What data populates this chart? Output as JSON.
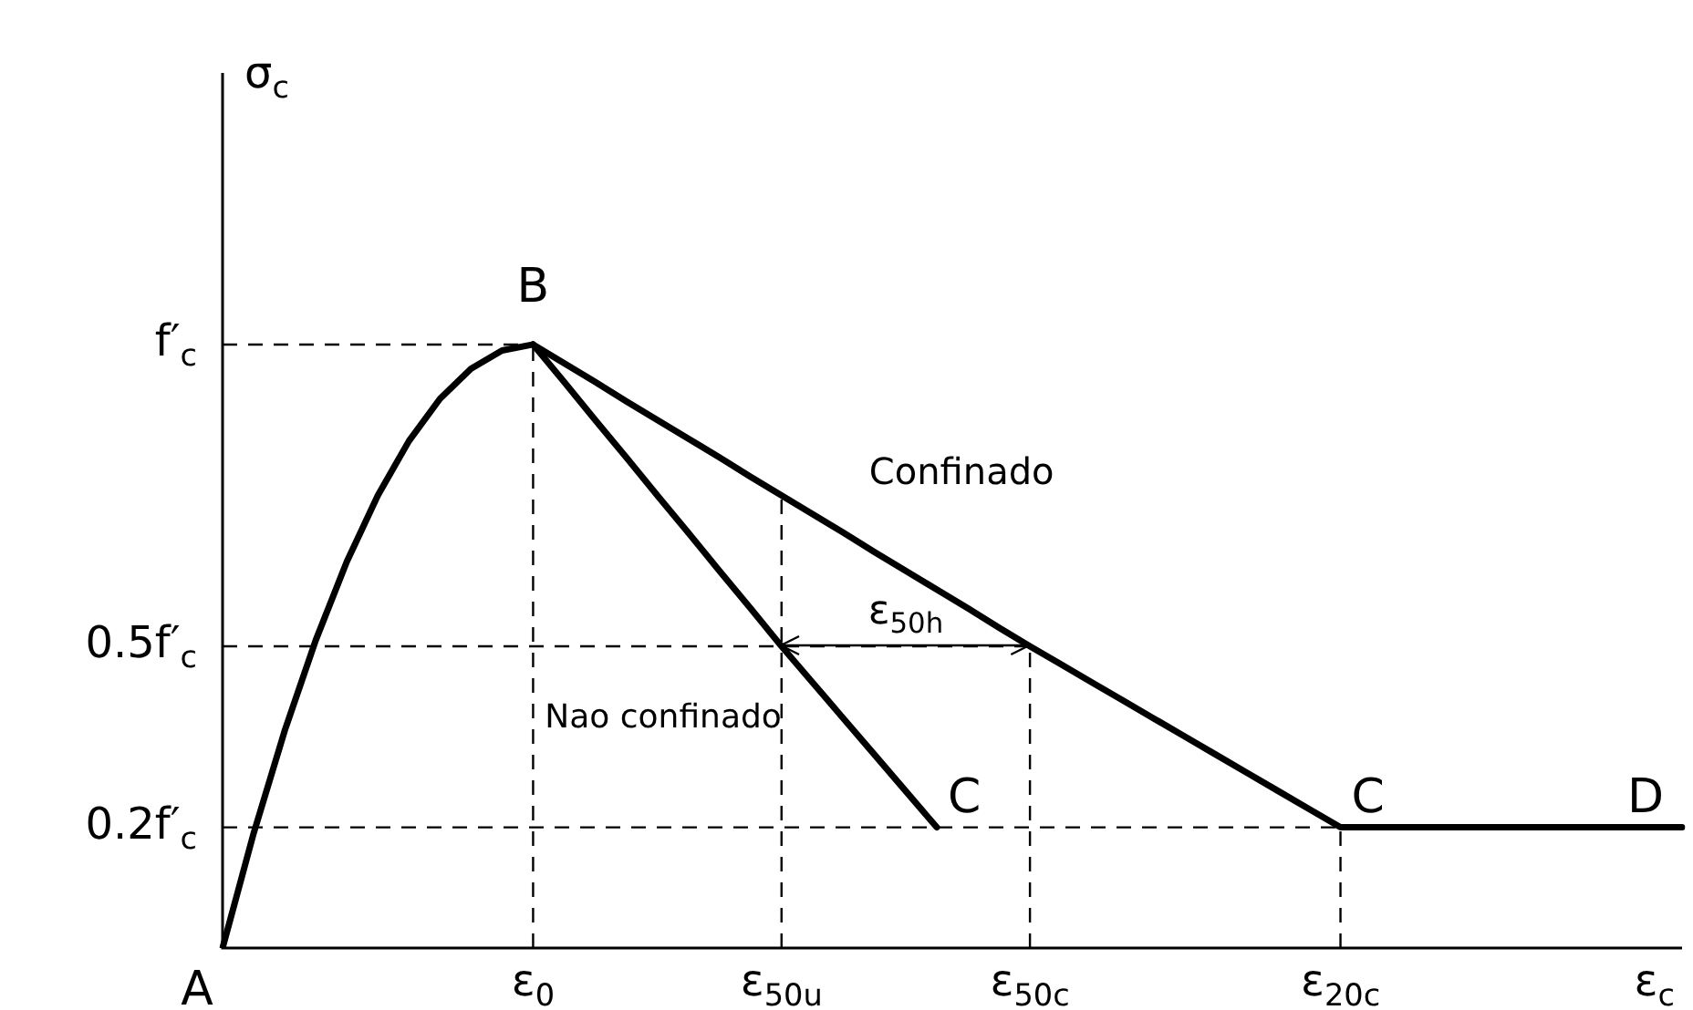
{
  "chart_data": {
    "type": "line",
    "xlabel": "ε$_{c}$",
    "ylabel": "σ$_{c}$",
    "categories": [
      null,
      null,
      null,
      null,
      null,
      null,
      null,
      null,
      null,
      null,
      "ε$_{0}$",
      null,
      null,
      null,
      null,
      null,
      null,
      null,
      "ε$_{50u}$",
      null,
      null,
      null,
      null,
      null,
      null,
      null,
      "ε$_{50c}$",
      null,
      null,
      null,
      null,
      null,
      null,
      null,
      null,
      null,
      "ε$_{20c}$",
      null,
      null,
      null,
      null,
      null,
      null,
      null,
      null,
      null,
      null,
      null
    ],
    "ylim": [
      0,
      1.45
    ],
    "yticks": [
      {
        "value": 1,
        "label": "f′$_{c}$"
      },
      {
        "value": 0.5,
        "label": "0.5f′$_{c}$"
      },
      {
        "value": 0.2,
        "label": "0.2f′$_{c}$"
      }
    ],
    "series": [
      {
        "color": "#000000",
        "values": [
          0,
          0.19,
          0.36,
          0.51,
          0.64,
          0.75,
          0.84,
          0.91,
          0.96,
          0.99,
          1,
          null,
          null,
          null,
          null,
          null,
          null,
          null,
          null,
          null,
          null,
          null,
          null,
          null,
          null,
          null,
          null,
          null,
          null,
          null,
          null,
          null,
          null,
          null,
          null,
          null,
          null,
          null,
          null,
          null,
          null,
          null,
          null,
          null,
          null,
          null,
          null,
          null
        ]
      },
      {
        "name": "Nao confinado",
        "color": "#000000",
        "values": [
          null,
          null,
          null,
          null,
          null,
          null,
          null,
          null,
          null,
          null,
          1,
          0.938,
          0.875,
          0.813,
          0.75,
          0.688,
          0.625,
          0.563,
          0.5,
          0.44,
          0.38,
          0.32,
          0.26,
          0.2,
          null,
          null,
          null,
          null,
          null,
          null,
          null,
          null,
          null,
          null,
          null,
          null,
          null,
          null,
          null,
          null,
          null,
          null,
          null,
          null,
          null,
          null,
          null,
          null
        ]
      },
      {
        "name": "Confinado",
        "color": "#000000",
        "values": [
          null,
          null,
          null,
          null,
          null,
          null,
          null,
          null,
          null,
          null,
          1,
          0.969,
          0.938,
          0.906,
          0.875,
          0.844,
          0.813,
          0.781,
          0.75,
          0.719,
          0.688,
          0.656,
          0.625,
          0.594,
          0.563,
          0.531,
          0.5,
          0.47,
          0.44,
          0.41,
          0.38,
          0.35,
          0.32,
          0.29,
          0.26,
          0.23,
          0.2,
          0.2,
          0.2,
          0.2,
          0.2,
          0.2,
          0.2,
          0.2,
          0.2,
          0.2,
          0.2,
          0.2
        ]
      }
    ],
    "ref_lines": [
      {
        "axis": "y",
        "value": 1,
        "line_style": "dashed"
      },
      {
        "axis": "y",
        "value": 0.5,
        "line_style": "dashed"
      },
      {
        "axis": "y",
        "value": 0.2,
        "line_style": "dashed"
      },
      {
        "axis": "x",
        "value": "ε$_{0}$",
        "line_style": "dashed"
      },
      {
        "axis": "x",
        "value": "ε$_{50u}$",
        "line_style": "dashed"
      },
      {
        "axis": "x",
        "value": "ε$_{50c}$",
        "line_style": "dashed"
      },
      {
        "axis": "x",
        "value": "ε$_{20c}$",
        "line_style": "dashed"
      }
    ],
    "annotations": [
      "A",
      {
        "text": "B",
        "x": "ε$_{0}$",
        "y": 1
      },
      {
        "text": "C",
        "y": 0.2
      },
      {
        "text": "C",
        "x": "ε$_{20c}$",
        "y": 0.2
      },
      {
        "text": "D",
        "y": 0.2
      },
      {
        "text": "ε$_{50h}$",
        "y": 0.5
      }
    ],
    "legend": false,
    "marker": "none",
    "line_style": "solid"
  }
}
